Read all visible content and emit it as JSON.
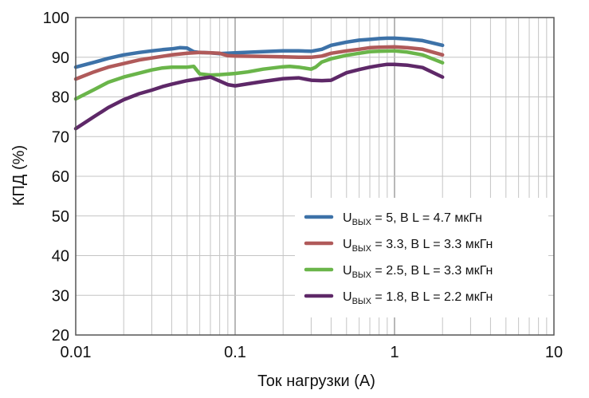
{
  "chart_data": {
    "type": "line",
    "title": "",
    "xlabel": "Ток нагрузки (А)",
    "ylabel": "КПД (%)",
    "xscale": "log",
    "xlim": [
      0.01,
      10
    ],
    "ylim": [
      20,
      100
    ],
    "x_ticks": [
      "0.01",
      "0.1",
      "1",
      "10"
    ],
    "y_ticks": [
      "20",
      "30",
      "40",
      "50",
      "60",
      "70",
      "80",
      "90",
      "100"
    ],
    "grid": true,
    "legend_position": "bottom-right",
    "series": [
      {
        "name_main": "U",
        "name_sub": "ВЫХ",
        "name_rest": " = 5, В L = 4.7 мкГн",
        "color": "#3d72a8",
        "x": [
          0.01,
          0.013,
          0.016,
          0.02,
          0.025,
          0.03,
          0.035,
          0.04,
          0.045,
          0.05,
          0.055,
          0.06,
          0.07,
          0.08,
          0.1,
          0.15,
          0.2,
          0.25,
          0.3,
          0.35,
          0.4,
          0.5,
          0.6,
          0.7,
          0.8,
          0.9,
          1.0,
          1.2,
          1.5,
          2.0
        ],
        "y": [
          87.5,
          88.7,
          89.7,
          90.6,
          91.2,
          91.6,
          91.9,
          92.1,
          92.4,
          92.3,
          91.4,
          91.2,
          91.1,
          90.9,
          91.1,
          91.4,
          91.6,
          91.6,
          91.5,
          92.0,
          93.0,
          93.8,
          94.3,
          94.5,
          94.7,
          94.8,
          94.8,
          94.6,
          94.2,
          93.0
        ]
      },
      {
        "name_main": "U",
        "name_sub": "ВЫХ",
        "name_rest": " = 3.3, В L = 3.3 мкГн",
        "color": "#b05a5a",
        "x": [
          0.01,
          0.013,
          0.016,
          0.02,
          0.025,
          0.03,
          0.04,
          0.05,
          0.06,
          0.07,
          0.08,
          0.09,
          0.1,
          0.15,
          0.2,
          0.25,
          0.3,
          0.35,
          0.4,
          0.5,
          0.6,
          0.7,
          0.8,
          1.0,
          1.2,
          1.5,
          2.0
        ],
        "y": [
          84.5,
          86.3,
          87.5,
          88.4,
          89.3,
          89.8,
          90.6,
          91.0,
          91.2,
          91.1,
          91.0,
          90.4,
          90.3,
          90.2,
          90.1,
          90.0,
          90.0,
          90.3,
          91.0,
          91.6,
          92.0,
          92.4,
          92.5,
          92.6,
          92.4,
          92.0,
          90.6
        ]
      },
      {
        "name_main": "U",
        "name_sub": "ВЫХ",
        "name_rest": " = 2.5, В L = 3.3 мкГн",
        "color": "#6ab54a",
        "x": [
          0.01,
          0.013,
          0.016,
          0.02,
          0.025,
          0.03,
          0.035,
          0.04,
          0.05,
          0.055,
          0.06,
          0.07,
          0.08,
          0.1,
          0.12,
          0.15,
          0.2,
          0.22,
          0.25,
          0.3,
          0.32,
          0.35,
          0.4,
          0.5,
          0.6,
          0.7,
          0.8,
          1.0,
          1.2,
          1.5,
          2.0
        ],
        "y": [
          79.5,
          81.8,
          83.7,
          85.0,
          86.0,
          86.8,
          87.3,
          87.5,
          87.5,
          87.7,
          85.8,
          85.5,
          85.6,
          85.9,
          86.3,
          87.0,
          87.6,
          87.7,
          87.5,
          87.0,
          87.5,
          88.8,
          89.6,
          90.5,
          91.0,
          91.4,
          91.5,
          91.6,
          91.3,
          90.6,
          88.6
        ]
      },
      {
        "name_main": "U",
        "name_sub": "ВЫХ",
        "name_rest": " = 1.8, В L = 2.2 мкГн",
        "color": "#5e2868",
        "x": [
          0.01,
          0.013,
          0.016,
          0.02,
          0.025,
          0.03,
          0.035,
          0.04,
          0.05,
          0.06,
          0.07,
          0.08,
          0.09,
          0.1,
          0.12,
          0.15,
          0.2,
          0.25,
          0.3,
          0.35,
          0.4,
          0.45,
          0.5,
          0.6,
          0.7,
          0.8,
          0.9,
          1.0,
          1.2,
          1.5,
          2.0
        ],
        "y": [
          72.0,
          75.0,
          77.3,
          79.3,
          80.8,
          81.7,
          82.6,
          83.2,
          84.1,
          84.6,
          85.0,
          84.0,
          83.1,
          82.8,
          83.3,
          83.9,
          84.6,
          84.8,
          84.2,
          84.1,
          84.2,
          85.2,
          86.1,
          86.9,
          87.5,
          87.9,
          88.2,
          88.2,
          88.0,
          87.4,
          85.0
        ]
      }
    ]
  }
}
